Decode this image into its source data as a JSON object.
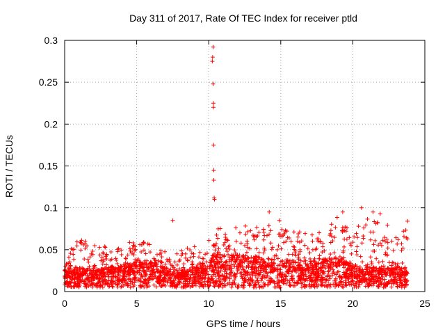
{
  "chart_data": {
    "type": "scatter",
    "title": "Day 311 of 2017, Rate Of TEC Index for receiver ptld",
    "xlabel": "GPS time / hours",
    "ylabel": "ROTI / TECUs",
    "xlim": [
      0,
      25
    ],
    "ylim": [
      0,
      0.3
    ],
    "xticks": [
      "0",
      "5",
      "10",
      "15",
      "20",
      "25"
    ],
    "yticks": [
      "0",
      "0.05",
      "0.1",
      "0.15",
      "0.2",
      "0.25",
      "0.3"
    ],
    "grid": true,
    "marker": "plus",
    "color": "#ff0000",
    "series": [
      {
        "name": "ROTI",
        "profile_hours": [
          0,
          1,
          2,
          3,
          4,
          5,
          6,
          7,
          8,
          9,
          10,
          10.3,
          11,
          12,
          13,
          14,
          15,
          16,
          17,
          18,
          19,
          20,
          21,
          22,
          23,
          23.8
        ],
        "profile_baseline": [
          0.02,
          0.02,
          0.018,
          0.02,
          0.022,
          0.025,
          0.025,
          0.02,
          0.018,
          0.02,
          0.022,
          0.03,
          0.028,
          0.03,
          0.028,
          0.028,
          0.025,
          0.025,
          0.025,
          0.028,
          0.028,
          0.022,
          0.02,
          0.02,
          0.02,
          0.02
        ],
        "profile_envelope": [
          0.04,
          0.065,
          0.055,
          0.058,
          0.06,
          0.06,
          0.058,
          0.05,
          0.05,
          0.055,
          0.06,
          0.08,
          0.075,
          0.08,
          0.078,
          0.08,
          0.075,
          0.072,
          0.07,
          0.075,
          0.09,
          0.07,
          0.095,
          0.09,
          0.065,
          0.08
        ],
        "outliers_x": [
          7.5,
          10.25,
          10.27,
          10.3,
          10.3,
          10.32,
          10.32,
          10.34,
          10.35,
          10.35,
          10.38,
          10.4,
          14.2,
          14.9,
          19.3,
          20.6,
          21.4,
          21.9,
          23.8
        ],
        "outliers_y": [
          0.085,
          0.275,
          0.28,
          0.292,
          0.248,
          0.225,
          0.22,
          0.175,
          0.145,
          0.133,
          0.112,
          0.11,
          0.095,
          0.085,
          0.095,
          0.1,
          0.095,
          0.093,
          0.084
        ]
      }
    ]
  }
}
